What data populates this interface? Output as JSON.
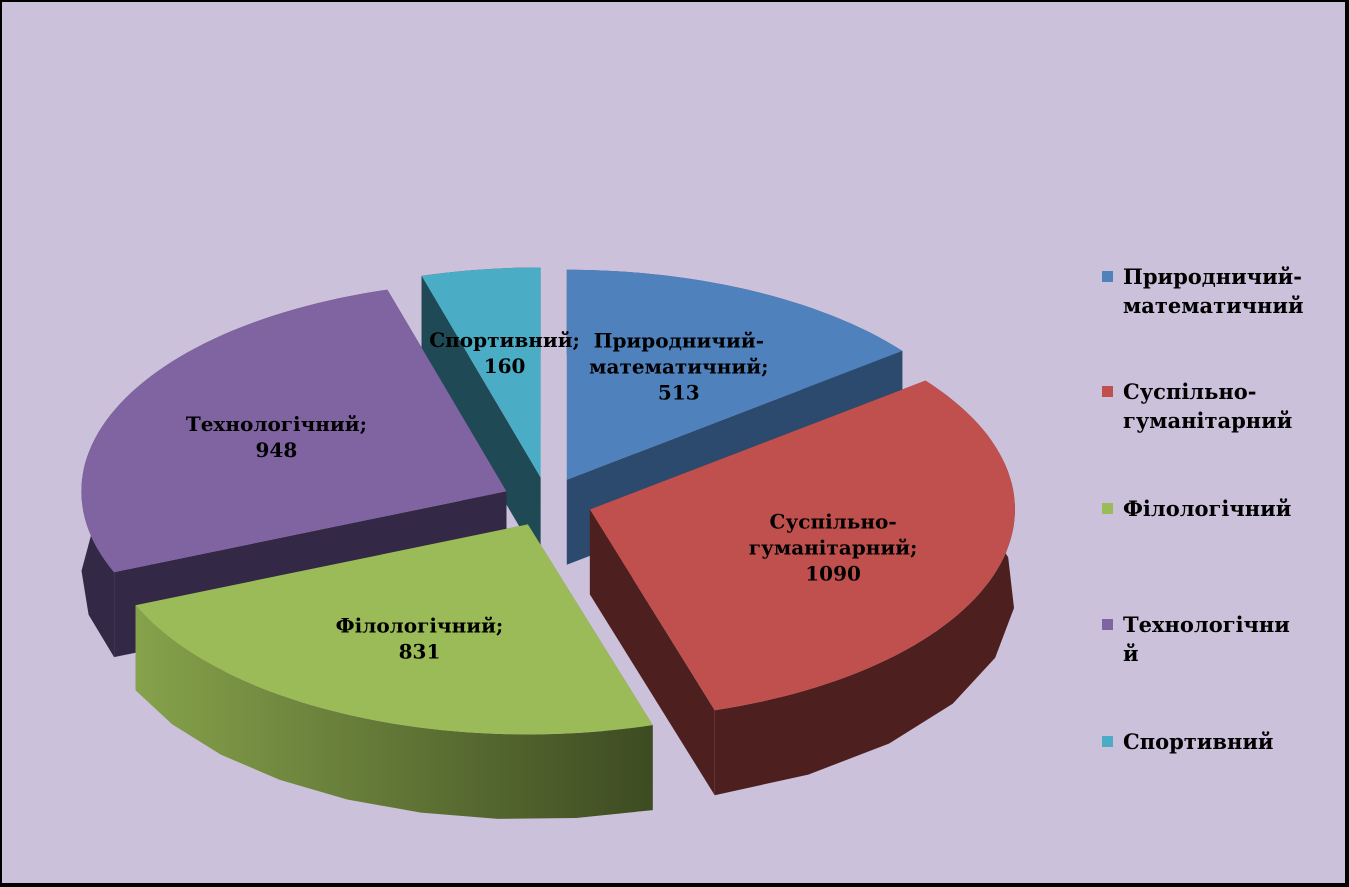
{
  "chart_data": {
    "type": "pie",
    "title": "",
    "three_d": true,
    "exploded": true,
    "legend_position": "right",
    "background": "#ccc1da",
    "slices": [
      {
        "name": "Природничий-математичний",
        "value": 513,
        "color": "#4f81bd",
        "dark": "#2c4a6e",
        "label_lines": [
          "Природничий-",
          "математичний;",
          "513"
        ],
        "legend_lines": [
          "Природничий-",
          "математичний"
        ]
      },
      {
        "name": "Суспільно-гуманітарний",
        "value": 1090,
        "color": "#c0504d",
        "dark": "#4e1f1f",
        "label_lines": [
          "Суспільно-",
          "гуманітарний;",
          "1090"
        ],
        "legend_lines": [
          "Суспільно-",
          "гуманітарний"
        ]
      },
      {
        "name": "Філологічний",
        "value": 831,
        "color": "#9bbb59",
        "dark": "#4f6130",
        "label_lines": [
          "Філологічний;",
          "831"
        ],
        "legend_lines": [
          "Філологічний"
        ]
      },
      {
        "name": "Технологічний",
        "value": 948,
        "color": "#8064a2",
        "dark": "#332845",
        "label_lines": [
          "Технологічний;",
          "948"
        ],
        "legend_lines": [
          "Технологічни",
          "й"
        ]
      },
      {
        "name": "Спортивний",
        "value": 160,
        "color": "#4bacc6",
        "dark": "#1f4a55",
        "label_lines": [
          "Спортивний;",
          "160"
        ],
        "legend_lines": [
          "Спортивний"
        ]
      }
    ]
  }
}
